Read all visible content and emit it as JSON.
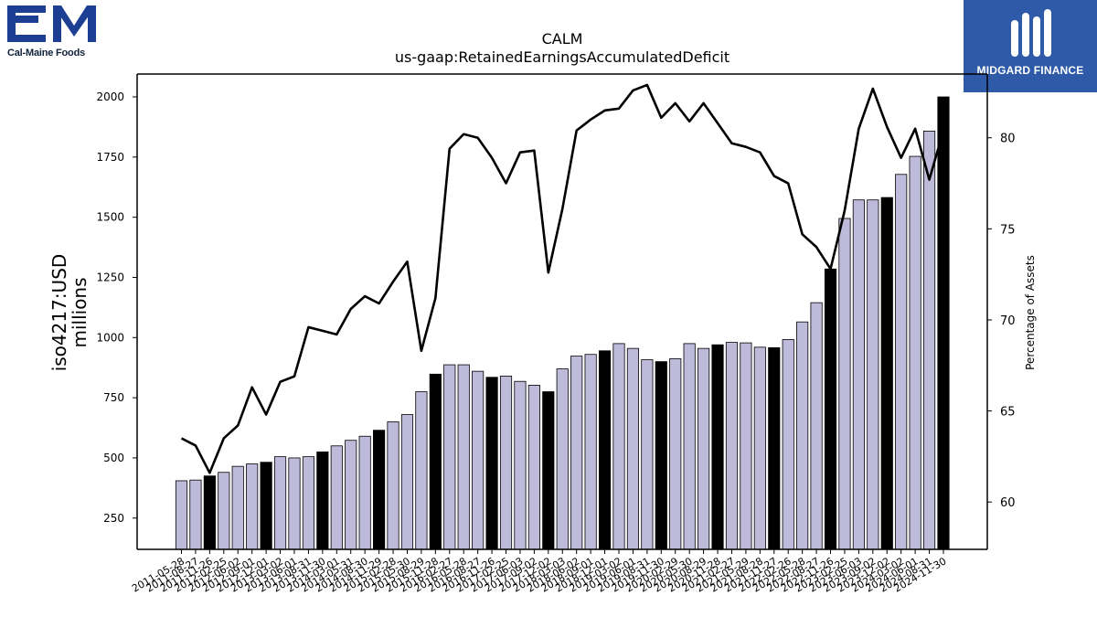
{
  "logos": {
    "left_name": "Cal-Maine Foods",
    "right_name": "MIDGARD FINANCE"
  },
  "chart_data": {
    "type": "bar",
    "title": "CALM",
    "subtitle": "us-gaap:RetainedEarningsAccumulatedDeficit",
    "ylabel": "iso4217:USD\nmillions",
    "y2label": "Percentage of Assets",
    "ylim": [
      120,
      2095
    ],
    "y2lim": [
      57.4,
      83.5
    ],
    "yticks": [
      250,
      500,
      750,
      1000,
      1250,
      1500,
      1750,
      2000
    ],
    "y2ticks": [
      60,
      65,
      70,
      75,
      80
    ],
    "x_tick_labels": [
      "2011-05-28",
      "2011-08-27",
      "2011-11-26",
      "2012-02-25",
      "2012-06-02",
      "2012-09-01",
      "2012-12-01",
      "2013-03-02",
      "2013-06-01",
      "2013-08-31",
      "2013-11-30",
      "2014-03-01",
      "2014-05-31",
      "2014-08-30",
      "2014-11-29",
      "2015-02-28",
      "2015-05-30",
      "2015-08-29",
      "2015-11-28",
      "2016-02-27",
      "2016-05-28",
      "2016-08-27",
      "2016-11-26",
      "2017-02-25",
      "2017-06-03",
      "2017-09-02",
      "2017-12-02",
      "2018-03-03",
      "2018-06-02",
      "2018-09-01",
      "2018-12-01",
      "2019-03-02",
      "2019-06-01",
      "2019-08-31",
      "2019-11-30",
      "2020-02-29",
      "2020-05-30",
      "2020-08-29",
      "2020-11-28",
      "2021-02-27",
      "2021-05-29",
      "2021-08-28",
      "2021-11-27",
      "2022-02-26",
      "2022-05-28",
      "2022-08-27",
      "2022-11-26",
      "2023-02-25",
      "2023-06-03",
      "2023-09-02",
      "2023-12-02",
      "2024-03-02",
      "2024-06-01",
      "2024-08-31",
      "2024-11-30"
    ],
    "colors": {
      "bar": "#bdbbd9",
      "bar_fiscal_year_end": "#000000",
      "line": "#000000"
    },
    "series": [
      {
        "values": [
          405,
          408,
          425,
          440,
          465,
          475,
          482,
          505,
          500,
          505,
          525,
          550,
          573,
          590,
          615,
          650,
          680,
          775,
          848,
          887,
          887,
          860,
          835,
          840,
          818,
          802,
          775,
          870,
          923,
          930,
          945,
          975,
          955,
          908,
          900,
          912,
          975,
          955,
          970,
          980,
          978,
          960,
          958,
          992,
          1065,
          1145,
          1285,
          1495,
          1572,
          1572,
          1582,
          1678,
          1753,
          1858,
          2000
        ],
        "fiscal_year_end": [
          false,
          false,
          true,
          false,
          false,
          false,
          true,
          false,
          false,
          false,
          true,
          false,
          false,
          false,
          true,
          false,
          false,
          false,
          true,
          false,
          false,
          false,
          true,
          false,
          false,
          false,
          true,
          false,
          false,
          false,
          true,
          false,
          false,
          false,
          true,
          false,
          false,
          false,
          true,
          false,
          false,
          false,
          true,
          false,
          false,
          false,
          true,
          false,
          false,
          false,
          true,
          false,
          false,
          false,
          true
        ]
      },
      {
        "name": "Percentage of Assets",
        "type": "line",
        "axis": "right",
        "values": [
          63.5,
          63.1,
          61.6,
          63.5,
          64.2,
          66.3,
          64.8,
          66.6,
          66.9,
          69.6,
          69.4,
          69.2,
          70.6,
          71.3,
          70.9,
          72.1,
          73.2,
          68.3,
          71.2,
          79.4,
          80.2,
          80.0,
          78.9,
          77.5,
          79.2,
          79.3,
          72.6,
          76.1,
          80.4,
          81.0,
          81.5,
          81.6,
          82.6,
          82.9,
          81.1,
          81.9,
          80.9,
          81.9,
          80.8,
          79.7,
          79.5,
          79.2,
          77.9,
          77.5,
          74.7,
          74.0,
          72.8,
          76.0,
          80.5,
          82.7,
          80.6,
          78.9,
          80.5,
          77.7,
          80.4
        ]
      }
    ]
  }
}
